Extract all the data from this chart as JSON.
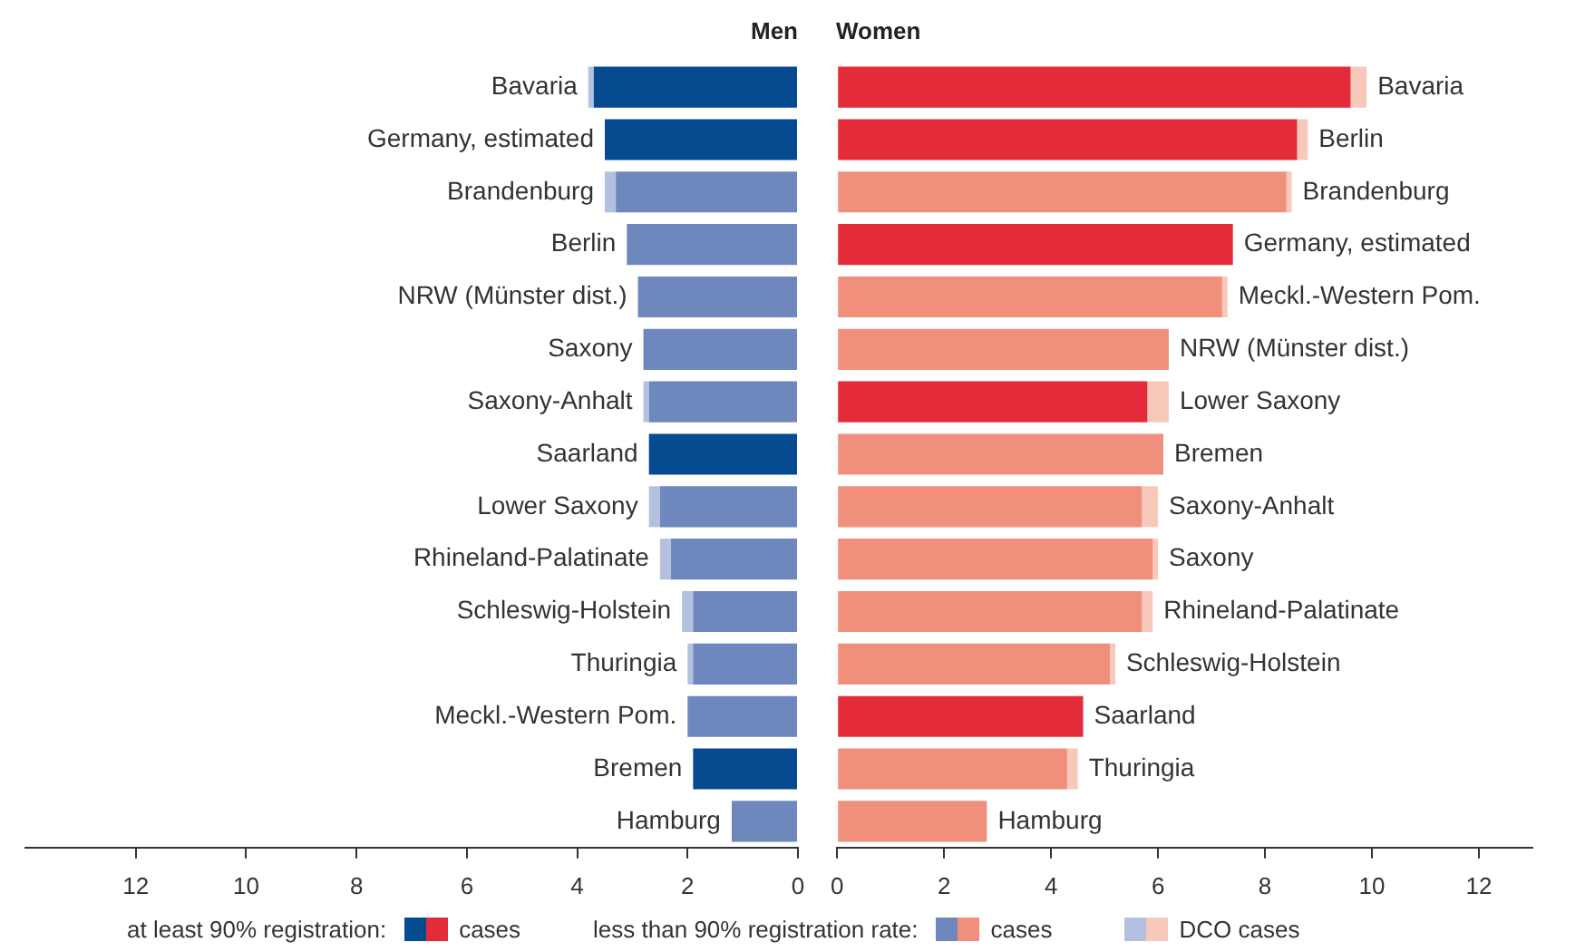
{
  "chart_data": [
    {
      "type": "bar",
      "title": "Men",
      "orientation": "horizontal",
      "stacked": true,
      "legend": "bottom",
      "categories": [
        "Bavaria",
        "Germany, estimated",
        "Brandenburg",
        "Berlin",
        "NRW (Münster dist.)",
        "Saxony",
        "Saxony-Anhalt",
        "Saarland",
        "Lower Saxony",
        "Rhineland-Palatinate",
        "Schleswig-Holstein",
        "Thuringia",
        "Meckl.-Western Pom.",
        "Bremen",
        "Hamburg"
      ],
      "xlim": [
        14,
        0
      ],
      "xticks": [
        0,
        2,
        4,
        6,
        8,
        10,
        12
      ],
      "annotations": [
        "at least 90% registration:",
        "less than 90% registration rate:"
      ],
      "series": [
        {
          "name": "cases",
          "color": "#064b8f",
          "values": [
            3.7,
            3.5,
            null,
            null,
            null,
            null,
            null,
            2.7,
            null,
            null,
            null,
            null,
            null,
            1.9,
            null
          ]
        },
        {
          "name": "cases",
          "color": "#6e88bd",
          "values": [
            null,
            null,
            3.3,
            3.1,
            2.9,
            2.8,
            2.7,
            null,
            2.5,
            2.3,
            1.9,
            1.9,
            2.0,
            null,
            1.2
          ]
        },
        {
          "name": "DCO cases",
          "color": "#b4c0df",
          "values": [
            0.1,
            null,
            0.2,
            null,
            null,
            null,
            0.1,
            null,
            0.2,
            0.2,
            0.2,
            0.1,
            null,
            null,
            null
          ]
        }
      ]
    },
    {
      "type": "bar",
      "title": "Women",
      "orientation": "horizontal",
      "stacked": true,
      "categories": [
        "Bavaria",
        "Berlin",
        "Brandenburg",
        "Germany, estimated",
        "Meckl.-Western Pom.",
        "NRW (Münster dist.)",
        "Lower Saxony",
        "Bremen",
        "Saxony-Anhalt",
        "Saxony",
        "Rhineland-Palatinate",
        "Schleswig-Holstein",
        "Saarland",
        "Thuringia",
        "Hamburg"
      ],
      "xlim": [
        0,
        13
      ],
      "xticks": [
        0,
        2,
        4,
        6,
        8,
        10,
        12
      ],
      "series": [
        {
          "color": "#e42b3a",
          "values": [
            9.6,
            8.6,
            null,
            7.4,
            null,
            null,
            5.8,
            null,
            null,
            null,
            null,
            null,
            4.6,
            null,
            null
          ]
        },
        {
          "color": "#f0907c",
          "values": [
            null,
            null,
            8.4,
            null,
            7.2,
            6.2,
            null,
            6.1,
            5.7,
            5.9,
            5.7,
            5.1,
            null,
            4.3,
            2.8
          ]
        },
        {
          "color": "#f8c8bb",
          "values": [
            0.3,
            0.2,
            0.1,
            null,
            0.1,
            null,
            0.4,
            null,
            0.3,
            0.1,
            0.2,
            0.1,
            null,
            0.2,
            null
          ]
        }
      ]
    }
  ]
}
